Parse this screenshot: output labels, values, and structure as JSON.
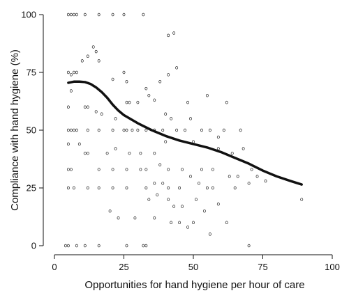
{
  "chart_data": {
    "type": "scatter",
    "title": "",
    "xlabel": "Opportunities for hand hygiene per hour of care",
    "ylabel": "Compliance with hand hygiene (%)",
    "xlim": [
      0,
      100
    ],
    "ylim": [
      0,
      100
    ],
    "xticks": [
      0,
      25,
      50,
      75,
      100
    ],
    "yticks": [
      0,
      25,
      50,
      75,
      100
    ],
    "grid": false,
    "legend": "none",
    "colors": {
      "points": "#222222",
      "trend": "#111111"
    },
    "series": [
      {
        "kind": "points",
        "x": [
          5,
          6,
          7,
          8,
          11,
          16,
          21,
          25,
          32,
          43,
          41,
          14,
          15,
          12,
          16,
          10,
          5,
          7,
          6,
          8,
          21,
          25,
          26,
          38,
          41,
          55,
          44,
          33,
          34,
          30,
          6,
          5,
          11,
          12,
          15,
          22,
          17,
          26,
          27,
          36,
          48,
          40,
          42,
          49,
          62,
          5,
          6,
          7,
          8,
          12,
          16,
          21,
          25,
          26,
          28,
          30,
          33,
          36,
          39,
          44,
          47,
          53,
          56,
          61,
          67,
          5,
          9,
          11,
          12,
          19,
          22,
          27,
          31,
          36,
          40,
          50,
          59,
          59,
          64,
          68,
          5,
          6,
          16,
          21,
          26,
          31,
          33,
          38,
          41,
          46,
          49,
          53,
          57,
          63,
          66,
          71,
          73,
          5,
          7,
          12,
          16,
          21,
          26,
          33,
          36,
          39,
          41,
          45,
          52,
          55,
          57,
          65,
          70,
          76,
          89,
          20,
          34,
          37,
          41,
          43,
          46,
          51,
          54,
          56,
          59,
          62,
          4,
          5,
          8,
          11,
          16,
          26,
          32,
          33,
          70,
          29,
          42,
          36,
          48,
          23,
          45,
          50
        ],
        "y": [
          100,
          100,
          100,
          100,
          100,
          100,
          100,
          100,
          100,
          92,
          91,
          86,
          84,
          82,
          80,
          80,
          75,
          75,
          74,
          75,
          72,
          75,
          71,
          71,
          74,
          65,
          77,
          68,
          65,
          62,
          67,
          60,
          60,
          60,
          58,
          55,
          57,
          62,
          62,
          63,
          62,
          57,
          55,
          55,
          62,
          50,
          50,
          50,
          50,
          50,
          50,
          50,
          50,
          50,
          50,
          50,
          50,
          50,
          50,
          50,
          50,
          50,
          50,
          50,
          50,
          44,
          44,
          40,
          40,
          40,
          42,
          40,
          40,
          40,
          45,
          45,
          47,
          42,
          40,
          42,
          33,
          33,
          33,
          33,
          33,
          33,
          33,
          35,
          33,
          33,
          30,
          33,
          33,
          30,
          30,
          33,
          30,
          25,
          25,
          25,
          25,
          25,
          25,
          25,
          27,
          27,
          25,
          25,
          27,
          25,
          25,
          25,
          27,
          28,
          20,
          15,
          20,
          22,
          20,
          17,
          17,
          20,
          15,
          5,
          18,
          10,
          0,
          0,
          0,
          0,
          0,
          0,
          0,
          0,
          0,
          12,
          10,
          12,
          8,
          12,
          10,
          10
        ]
      },
      {
        "kind": "smoothed-line",
        "x": [
          5,
          7,
          9,
          11,
          13,
          15,
          17,
          19,
          21,
          23,
          25,
          30,
          35,
          40,
          45,
          50,
          55,
          60,
          65,
          70,
          75,
          80,
          85,
          89
        ],
        "y": [
          70.5,
          71,
          71,
          70.8,
          70,
          68.5,
          66.5,
          64,
          61,
          58.5,
          56.5,
          53,
          50,
          47.5,
          45.5,
          44,
          42.5,
          40.5,
          38,
          35.5,
          32.5,
          30,
          28,
          26.5
        ]
      }
    ]
  }
}
